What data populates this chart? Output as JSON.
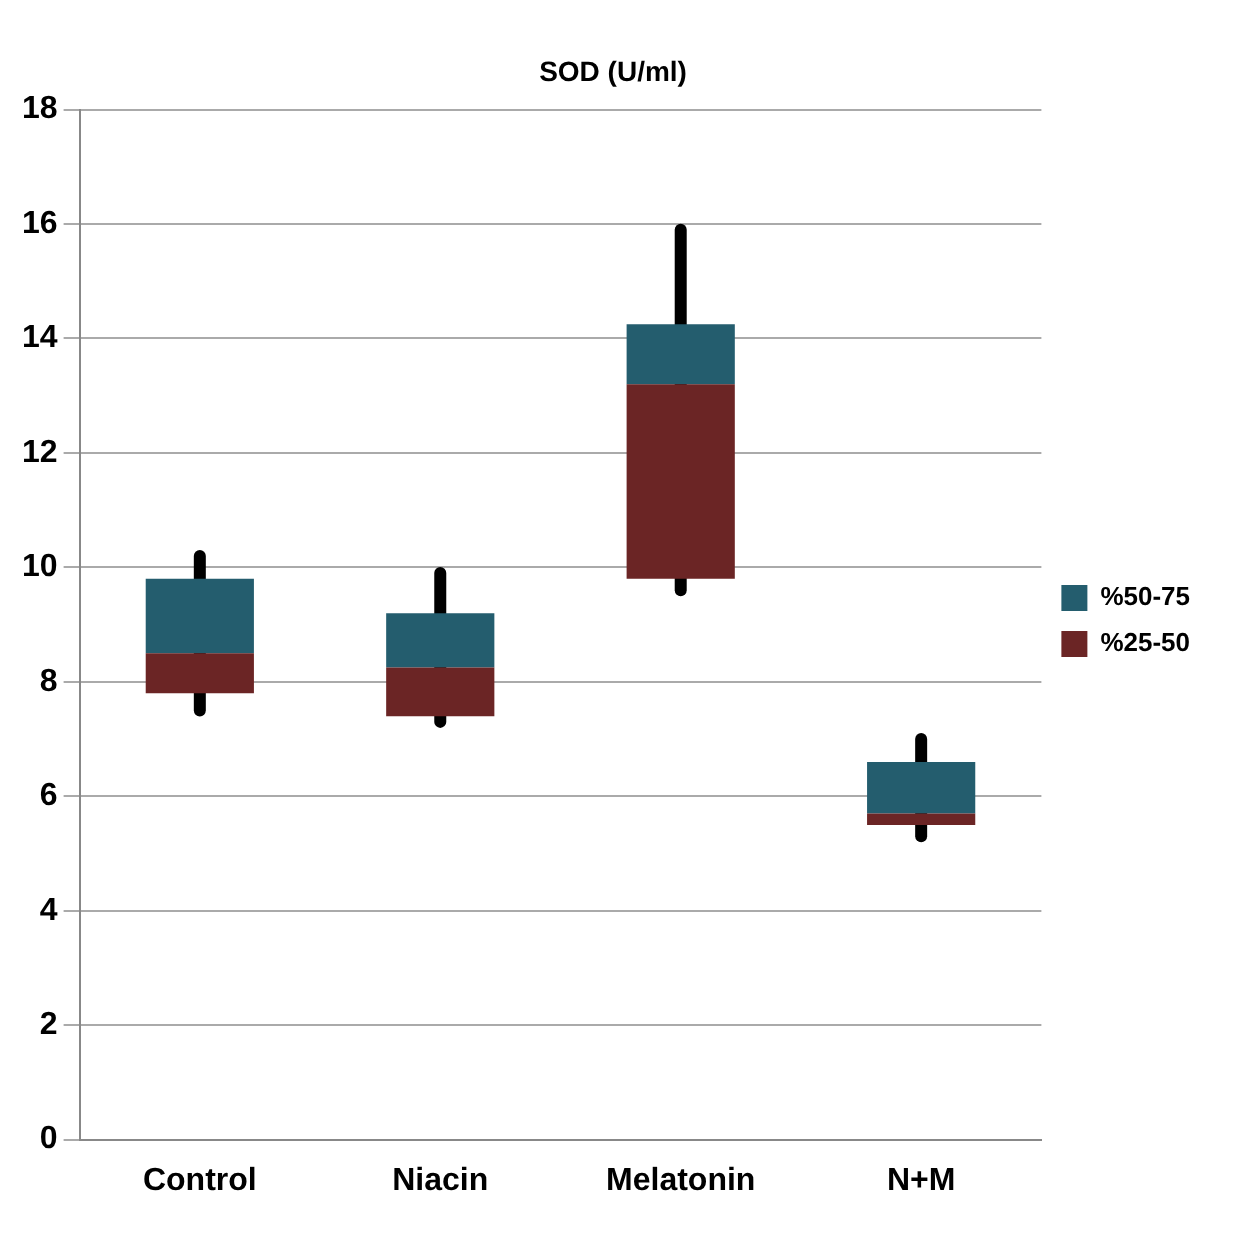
{
  "chart_data": {
    "type": "bar",
    "title": "SOD (U/ml)",
    "categories": [
      "Control",
      "Niacin",
      "Melatonin",
      "N+M"
    ],
    "series": [
      {
        "name": "%25-50",
        "color": "#6b2525",
        "base": [
          7.8,
          7.4,
          9.8,
          5.5
        ],
        "values": [
          0.7,
          0.85,
          3.4,
          0.2
        ]
      },
      {
        "name": "%50-75",
        "color": "#245d6e",
        "base": [
          8.5,
          8.25,
          13.2,
          5.7
        ],
        "values": [
          1.3,
          0.95,
          1.05,
          0.9
        ],
        "errors": [
          [
            7.5,
            10.2
          ],
          [
            7.3,
            9.9
          ],
          [
            9.6,
            15.9
          ],
          [
            5.3,
            7.0
          ]
        ]
      }
    ],
    "ylim": [
      0,
      18
    ],
    "yticks": [
      0,
      2,
      4,
      6,
      8,
      10,
      12,
      14,
      16,
      18
    ],
    "grid": "y",
    "legend": "right"
  }
}
